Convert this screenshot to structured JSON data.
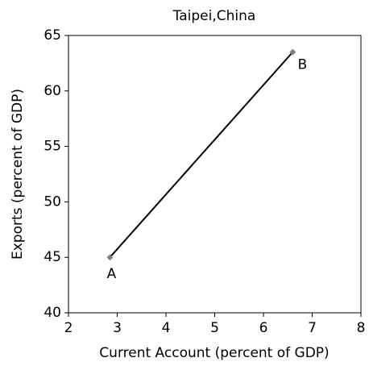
{
  "chart_data": {
    "type": "line",
    "title": "Taipei,China",
    "x_label": "Current Account (percent of GDP)",
    "y_label": "Exports (percent of GDP)",
    "x": [
      2.85,
      6.6
    ],
    "series": [
      {
        "color": "#000000",
        "marker_color": "#808080",
        "values": [
          45,
          63.5
        ],
        "point_labels": [
          "A",
          "B"
        ]
      }
    ],
    "xlim": [
      2,
      8
    ],
    "xticks": [
      2,
      3,
      4,
      5,
      6,
      7,
      8
    ],
    "ylim": [
      40,
      65
    ],
    "yticks": [
      40,
      45,
      50,
      55,
      60,
      65
    ],
    "grid": false
  }
}
